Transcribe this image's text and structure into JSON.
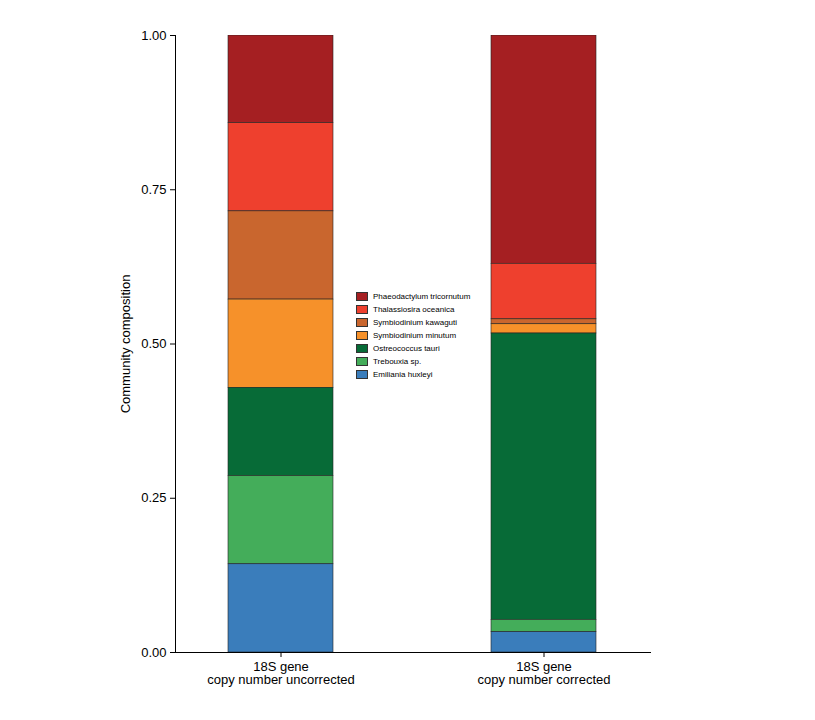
{
  "chart_data": {
    "type": "bar",
    "stacked": true,
    "legend": "center",
    "y_label": "Community composition",
    "categories": [
      "18S gene\ncopy number uncorrected",
      "18S gene\ncopy number corrected"
    ],
    "ylim": [
      0,
      1
    ],
    "yticks": [
      {
        "value": 0,
        "label": "0.00"
      },
      {
        "value": 0.25,
        "label": "0.25"
      },
      {
        "value": 0.5,
        "label": "0.50"
      },
      {
        "value": 0.75,
        "label": "0.75"
      },
      {
        "value": 1,
        "label": "1.00"
      }
    ],
    "series": [
      {
        "name": "Phaeodactylum tricornutum",
        "color": "#a51f22",
        "values": [
          0.142,
          0.37
        ]
      },
      {
        "name": "Thalassiosira oceanica",
        "color": "#ee402e",
        "values": [
          0.143,
          0.09
        ]
      },
      {
        "name": "Symbiodinium kawaguti",
        "color": "#c9662e",
        "values": [
          0.143,
          0.008
        ]
      },
      {
        "name": "Symbiodinium minutum",
        "color": "#f6912a",
        "values": [
          0.143,
          0.015
        ]
      },
      {
        "name": "Ostreococcus tauri",
        "color": "#076b37",
        "values": [
          0.143,
          0.464
        ]
      },
      {
        "name": "Trebouxia sp.",
        "color": "#44ad5a",
        "values": [
          0.143,
          0.02
        ]
      },
      {
        "name": "Emiliania huxleyi",
        "color": "#3a7dbb",
        "values": [
          0.143,
          0.033
        ]
      }
    ]
  }
}
